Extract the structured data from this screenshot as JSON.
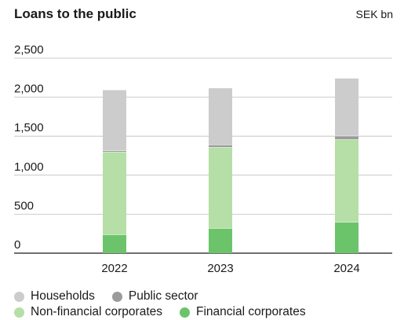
{
  "chart_data": {
    "type": "bar",
    "stacked": true,
    "title": "Loans to the public",
    "unit_label": "SEK bn",
    "categories": [
      "2022",
      "2023",
      "2024"
    ],
    "ylim": [
      0,
      2500
    ],
    "yticks": [
      "0",
      "500",
      "1,000",
      "1,500",
      "2,000",
      "2,500"
    ],
    "grid": true,
    "legend_position": "bottom",
    "series": [
      {
        "name": "Financial corporates",
        "color": "#6cc46a",
        "values": [
          240,
          320,
          400
        ]
      },
      {
        "name": "Non-financial corporates",
        "color": "#b5dfa6",
        "values": [
          1060,
          1040,
          1060
        ]
      },
      {
        "name": "Public sector",
        "color": "#9b9b9b",
        "values": [
          15,
          30,
          45
        ]
      },
      {
        "name": "Households",
        "color": "#cccccc",
        "values": [
          775,
          725,
          735
        ]
      }
    ]
  },
  "legend": [
    {
      "label": "Households",
      "color": "#cccccc"
    },
    {
      "label": "Public sector",
      "color": "#9b9b9b"
    },
    {
      "label": "Non-financial corporates",
      "color": "#b5dfa6"
    },
    {
      "label": "Financial corporates",
      "color": "#6cc46a"
    }
  ]
}
